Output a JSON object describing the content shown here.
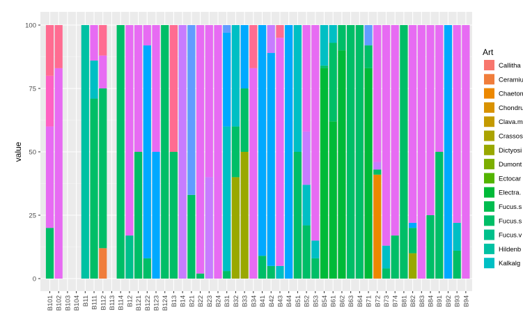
{
  "chart_data": {
    "type": "bar",
    "stacked": true,
    "ylabel": "value",
    "xlabel": "",
    "ylim": [
      0,
      100
    ],
    "yticks": [
      0,
      25,
      50,
      75,
      100
    ],
    "grid": true,
    "legend_placement": "right",
    "legend": {
      "title": "Art",
      "entries": [
        {
          "label": "Callitha",
          "color": "#F8766D"
        },
        {
          "label": "Ceramiu",
          "color": "#F07D3B"
        },
        {
          "label": "Chaetom",
          "color": "#EC8800"
        },
        {
          "label": "Chondru",
          "color": "#D99200"
        },
        {
          "label": "Clava.m",
          "color": "#C49A00"
        },
        {
          "label": "Crassos",
          "color": "#ABA300"
        },
        {
          "label": "Dictyosi",
          "color": "#99A800"
        },
        {
          "label": "Dumont",
          "color": "#7CAE00"
        },
        {
          "label": "Ectocar",
          "color": "#53B400"
        },
        {
          "label": "Electra.",
          "color": "#00BA38"
        },
        {
          "label": "Fucus.s",
          "color": "#00BC4F"
        },
        {
          "label": "Fucus.s",
          "color": "#00BE67"
        },
        {
          "label": "Fucus.v",
          "color": "#00C08B"
        },
        {
          "label": "Hildenb",
          "color": "#00C1A3"
        },
        {
          "label": "Kalkalg",
          "color": "#00BFC4"
        }
      ]
    },
    "categories": [
      "B101",
      "B102",
      "B103",
      "B104",
      "B11",
      "B111",
      "B112",
      "B113",
      "B114",
      "B12",
      "B121",
      "B122",
      "B123",
      "B124",
      "B13",
      "B14",
      "B21",
      "B22",
      "B23",
      "B24",
      "B31",
      "B32",
      "B33",
      "B34",
      "B41",
      "B42",
      "B43",
      "B44",
      "B51",
      "B52",
      "B53",
      "B54",
      "B61",
      "B62",
      "B63",
      "B64",
      "B71",
      "B72",
      "B73",
      "B74",
      "B81",
      "B82",
      "B83",
      "B84",
      "B91",
      "B92",
      "B93",
      "B94"
    ],
    "stacks": [
      [
        {
          "value": 20,
          "color": "#00BE67"
        },
        {
          "value": 40,
          "color": "#E76BF3"
        },
        {
          "value": 20,
          "color": "#FF61C3"
        },
        {
          "value": 20,
          "color": "#FF6C91"
        }
      ],
      [
        {
          "value": 83,
          "color": "#E76BF3"
        },
        {
          "value": 17,
          "color": "#FF6C91"
        }
      ],
      [],
      [],
      [
        {
          "value": 100,
          "color": "#00C1A3"
        }
      ],
      [
        {
          "value": 71,
          "color": "#00BE67"
        },
        {
          "value": 15,
          "color": "#00BFC4"
        },
        {
          "value": 14,
          "color": "#E76BF3"
        }
      ],
      [
        {
          "value": 12,
          "color": "#F07D3B"
        },
        {
          "value": 63,
          "color": "#00BE67"
        },
        {
          "value": 13,
          "color": "#E76BF3"
        },
        {
          "value": 12,
          "color": "#FF6C91"
        }
      ],
      [],
      [
        {
          "value": 100,
          "color": "#00BE67"
        }
      ],
      [
        {
          "value": 17,
          "color": "#00C08B"
        },
        {
          "value": 83,
          "color": "#E76BF3"
        }
      ],
      [
        {
          "value": 50,
          "color": "#00BE67"
        },
        {
          "value": 50,
          "color": "#E76BF3"
        }
      ],
      [
        {
          "value": 8,
          "color": "#00BE67"
        },
        {
          "value": 84,
          "color": "#00A9FF"
        },
        {
          "value": 8,
          "color": "#E76BF3"
        }
      ],
      [
        {
          "value": 50,
          "color": "#00A9FF"
        },
        {
          "value": 50,
          "color": "#E76BF3"
        }
      ],
      [
        {
          "value": 100,
          "color": "#00BE67"
        }
      ],
      [
        {
          "value": 50,
          "color": "#00BE67"
        },
        {
          "value": 50,
          "color": "#FF6C91"
        }
      ],
      [
        {
          "value": 100,
          "color": "#C77CFF"
        }
      ],
      [
        {
          "value": 33,
          "color": "#00BE67"
        },
        {
          "value": 67,
          "color": "#619CFF"
        }
      ],
      [
        {
          "value": 2,
          "color": "#00BE67"
        },
        {
          "value": 98,
          "color": "#E76BF3"
        }
      ],
      [
        {
          "value": 40,
          "color": "#C77CFF"
        },
        {
          "value": 60,
          "color": "#E76BF3"
        }
      ],
      [
        {
          "value": 100,
          "color": "#E76BF3"
        }
      ],
      [
        {
          "value": 3,
          "color": "#00BE67"
        },
        {
          "value": 57,
          "color": "#00BFC4"
        },
        {
          "value": 37,
          "color": "#00A9FF"
        },
        {
          "value": 3,
          "color": "#619CFF"
        }
      ],
      [
        {
          "value": 40,
          "color": "#99A800"
        },
        {
          "value": 20,
          "color": "#00BE67"
        },
        {
          "value": 40,
          "color": "#00BFC4"
        }
      ],
      [
        {
          "value": 50,
          "color": "#99A800"
        },
        {
          "value": 25,
          "color": "#00BE67"
        },
        {
          "value": 25,
          "color": "#00A9FF"
        }
      ],
      [
        {
          "value": 83,
          "color": "#E76BF3"
        },
        {
          "value": 17,
          "color": "#FF6C91"
        }
      ],
      [
        {
          "value": 9,
          "color": "#00BE67"
        },
        {
          "value": 91,
          "color": "#00A9FF"
        }
      ],
      [
        {
          "value": 5,
          "color": "#00BE67"
        },
        {
          "value": 84,
          "color": "#00A9FF"
        },
        {
          "value": 11,
          "color": "#C77CFF"
        }
      ],
      [
        {
          "value": 5,
          "color": "#00BFC4"
        },
        {
          "value": 45,
          "color": "#E76BF3"
        },
        {
          "value": 45,
          "color": "#E76BF3"
        },
        {
          "value": 5,
          "color": "#FF6C91"
        }
      ],
      [
        {
          "value": 100,
          "color": "#00A9FF"
        }
      ],
      [
        {
          "value": 50,
          "color": "#00BE67"
        },
        {
          "value": 50,
          "color": "#00BFC4"
        }
      ],
      [
        {
          "value": 21,
          "color": "#00BE67"
        },
        {
          "value": 16,
          "color": "#00BFC4"
        },
        {
          "value": 21,
          "color": "#C77CFF"
        },
        {
          "value": 42,
          "color": "#E76BF3"
        }
      ],
      [
        {
          "value": 8,
          "color": "#00BE67"
        },
        {
          "value": 7,
          "color": "#00BFC4"
        },
        {
          "value": 85,
          "color": "#E76BF3"
        }
      ],
      [
        {
          "value": 83,
          "color": "#00BA38"
        },
        {
          "value": 1,
          "color": "#00BE67"
        },
        {
          "value": 16,
          "color": "#00BFC4"
        }
      ],
      [
        {
          "value": 62,
          "color": "#00BA38"
        },
        {
          "value": 31,
          "color": "#00BE67"
        },
        {
          "value": 7,
          "color": "#00BFC4"
        }
      ],
      [
        {
          "value": 90,
          "color": "#00BA38"
        },
        {
          "value": 10,
          "color": "#00BE67"
        }
      ],
      [
        {
          "value": 100,
          "color": "#00BE67"
        }
      ],
      [
        {
          "value": 100,
          "color": "#00BE67"
        }
      ],
      [
        {
          "value": 83,
          "color": "#00BA38"
        },
        {
          "value": 9,
          "color": "#00BE67"
        },
        {
          "value": 8,
          "color": "#619CFF"
        }
      ],
      [
        {
          "value": 41,
          "color": "#EC8800"
        },
        {
          "value": 2,
          "color": "#00BE67"
        },
        {
          "value": 3,
          "color": "#C77CFF"
        },
        {
          "value": 54,
          "color": "#E76BF3"
        }
      ],
      [
        {
          "value": 4,
          "color": "#00BE67"
        },
        {
          "value": 9,
          "color": "#00BFC4"
        },
        {
          "value": 87,
          "color": "#E76BF3"
        }
      ],
      [
        {
          "value": 17,
          "color": "#00BE67"
        },
        {
          "value": 83,
          "color": "#E76BF3"
        }
      ],
      [
        {
          "value": 100,
          "color": "#00BE67"
        }
      ],
      [
        {
          "value": 10,
          "color": "#99A800"
        },
        {
          "value": 10,
          "color": "#00BE67"
        },
        {
          "value": 2,
          "color": "#00A9FF"
        },
        {
          "value": 78,
          "color": "#E76BF3"
        }
      ],
      [
        {
          "value": 100,
          "color": "#E76BF3"
        }
      ],
      [
        {
          "value": 25,
          "color": "#00BE67"
        },
        {
          "value": 75,
          "color": "#E76BF3"
        }
      ],
      [
        {
          "value": 50,
          "color": "#00BE67"
        },
        {
          "value": 50,
          "color": "#E76BF3"
        }
      ],
      [
        {
          "value": 100,
          "color": "#00A9FF"
        }
      ],
      [
        {
          "value": 11,
          "color": "#00BE67"
        },
        {
          "value": 11,
          "color": "#00BFC4"
        },
        {
          "value": 78,
          "color": "#E76BF3"
        }
      ],
      [
        {
          "value": 100,
          "color": "#E76BF3"
        }
      ]
    ]
  }
}
